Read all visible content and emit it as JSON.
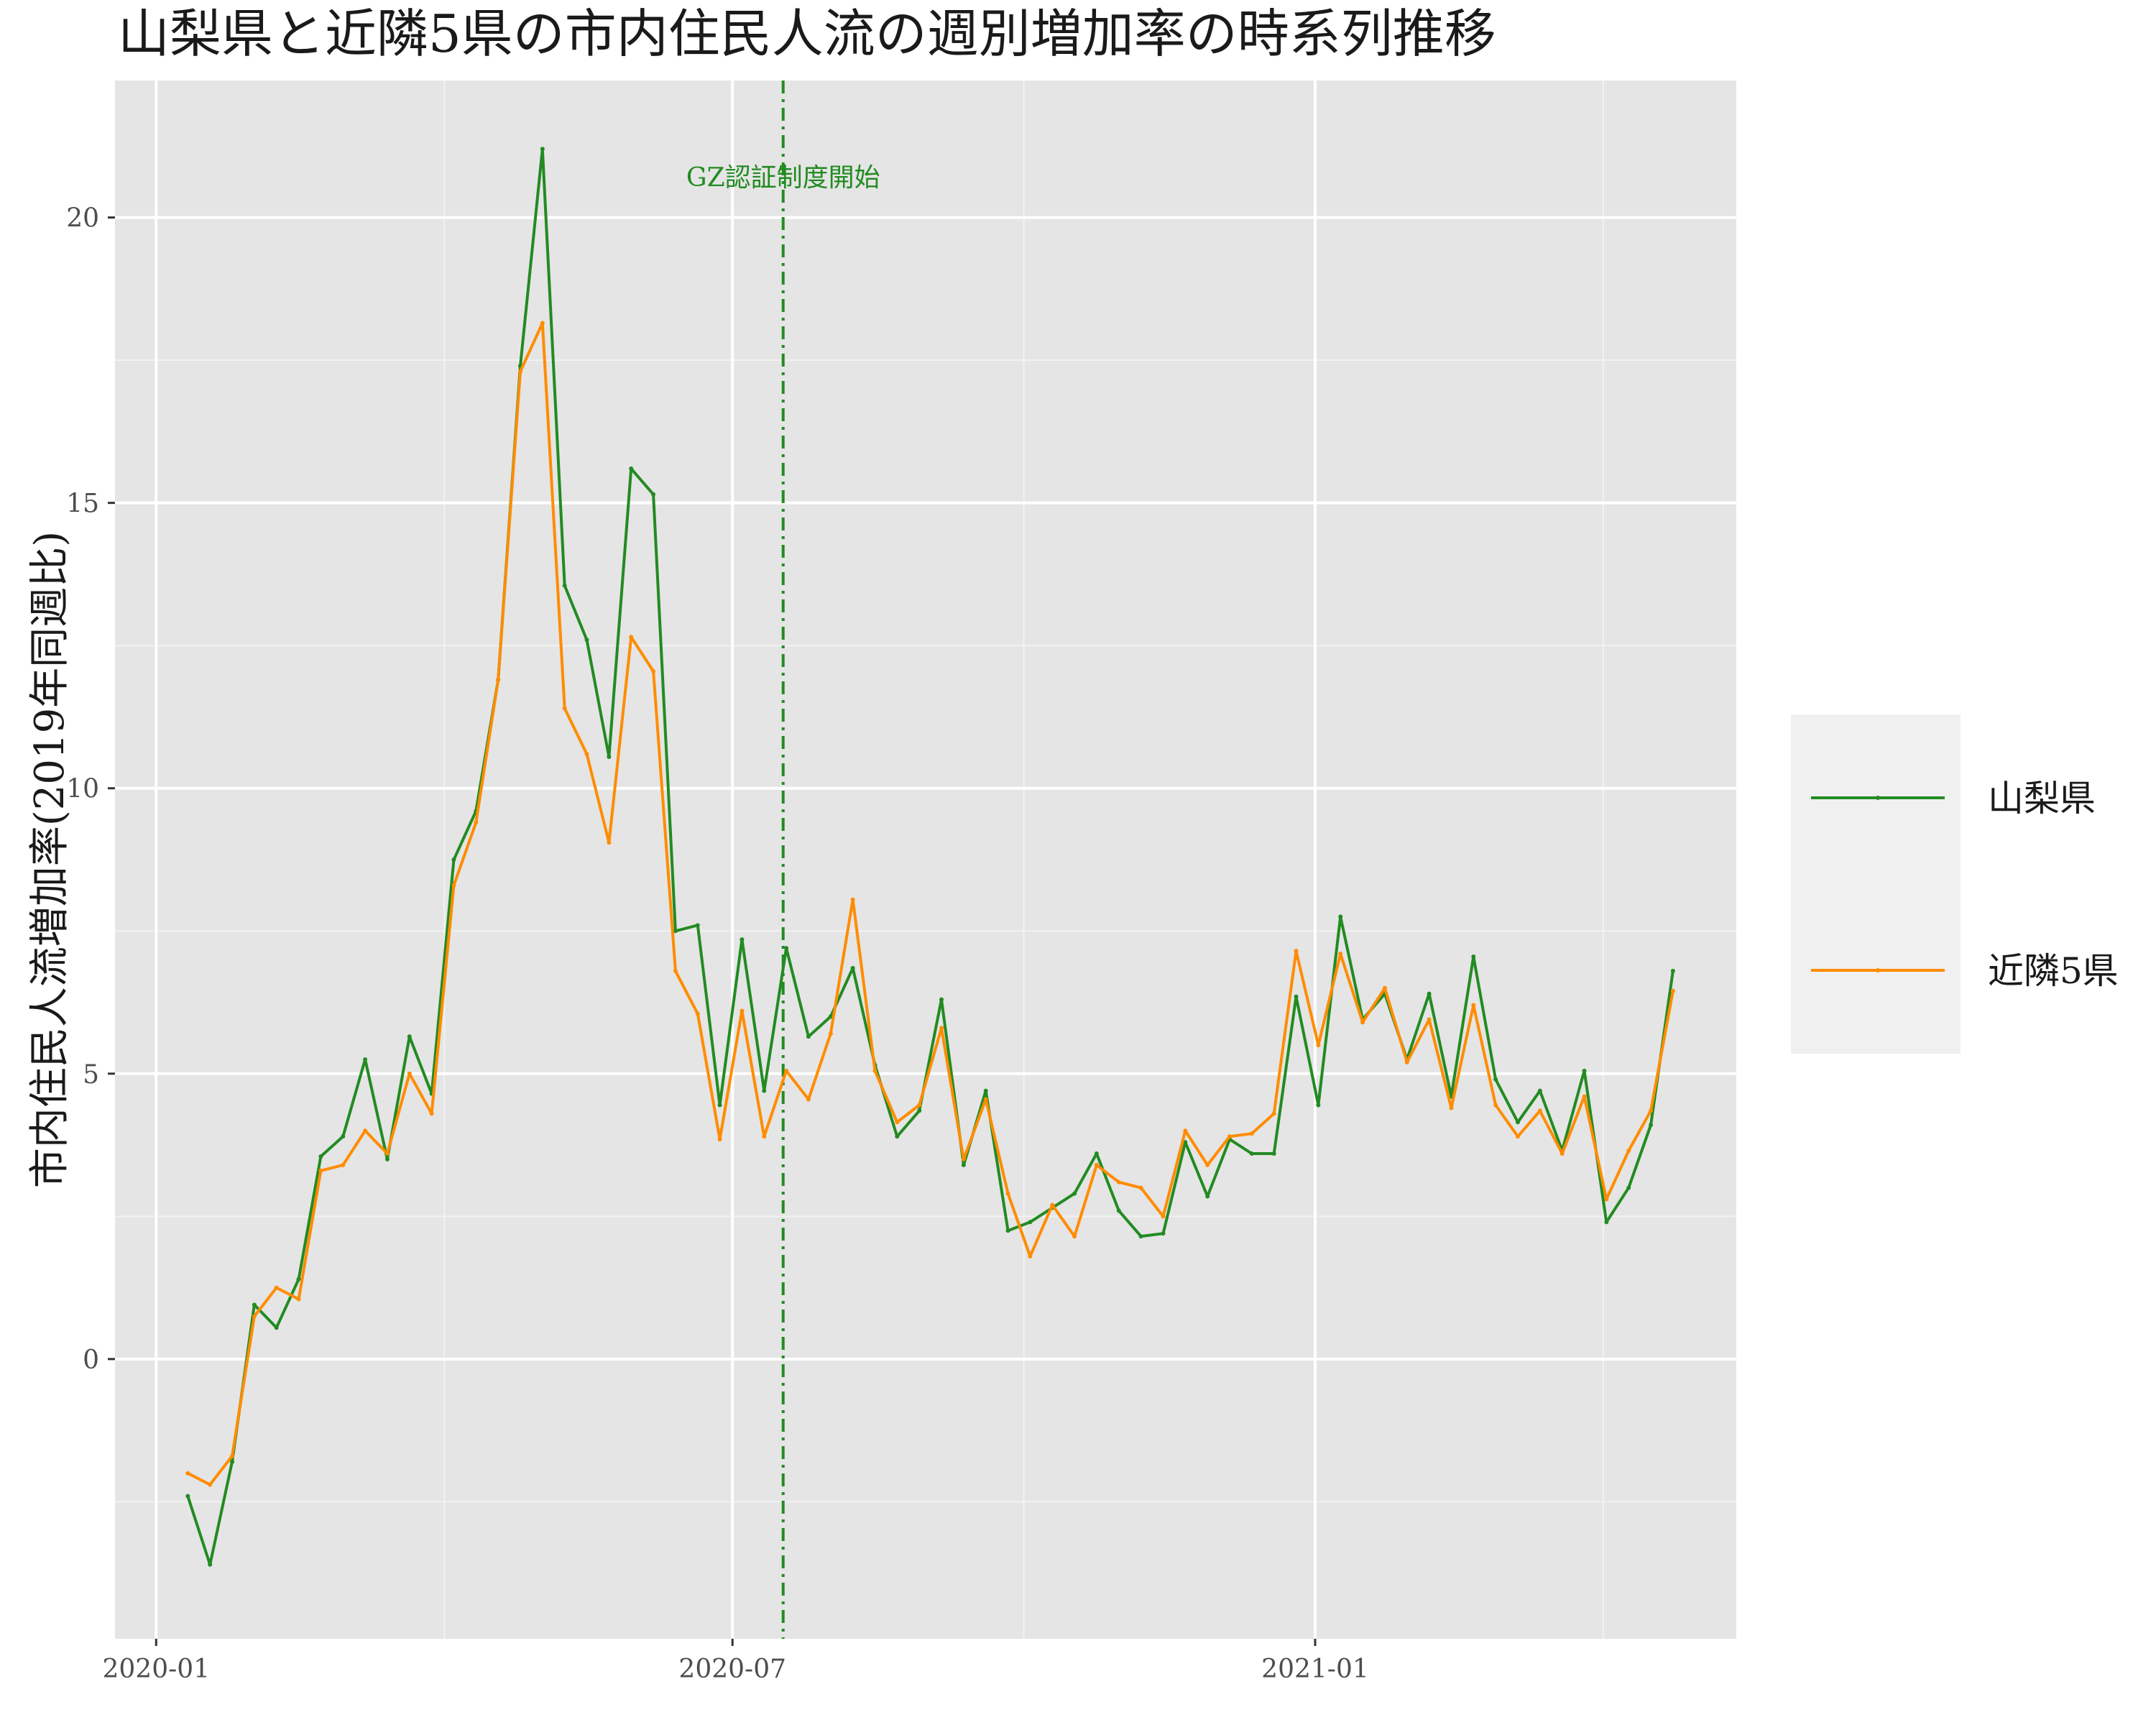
{
  "chart_data": {
    "type": "line",
    "title": "山梨県と近隣5県の市内住民人流の週別増加率の時系列推移",
    "xlabel": "",
    "ylabel": "市内住民人流増加率(2019年同週比)",
    "x_tick_labels": [
      "2020-01",
      "2020-07",
      "2021-01"
    ],
    "x_tick_dates": [
      "2020-01-01",
      "2020-07-01",
      "2021-01-01"
    ],
    "y_ticks": [
      0,
      5,
      10,
      15,
      20
    ],
    "y_tick_labels": [
      "0",
      "5",
      "10",
      "15",
      "20"
    ],
    "ylim": [
      -4.9,
      22.4
    ],
    "xlim": [
      "2019-12-19",
      "2021-05-14"
    ],
    "grid": true,
    "legend_position": "right",
    "annotation": {
      "label": "GZ認証制度開始",
      "date": "2020-07-17",
      "color": "#228b22",
      "style": "dot-dash"
    },
    "x": [
      "2020-01-11",
      "2020-01-18",
      "2020-01-25",
      "2020-02-01",
      "2020-02-08",
      "2020-02-15",
      "2020-02-22",
      "2020-02-29",
      "2020-03-07",
      "2020-03-14",
      "2020-03-21",
      "2020-03-28",
      "2020-04-04",
      "2020-04-11",
      "2020-04-18",
      "2020-04-25",
      "2020-05-02",
      "2020-05-09",
      "2020-05-16",
      "2020-05-23",
      "2020-05-30",
      "2020-06-06",
      "2020-06-13",
      "2020-06-20",
      "2020-06-27",
      "2020-07-04",
      "2020-07-11",
      "2020-07-18",
      "2020-07-25",
      "2020-08-01",
      "2020-08-08",
      "2020-08-15",
      "2020-08-22",
      "2020-08-29",
      "2020-09-05",
      "2020-09-12",
      "2020-09-19",
      "2020-09-26",
      "2020-10-03",
      "2020-10-10",
      "2020-10-17",
      "2020-10-24",
      "2020-10-31",
      "2020-11-07",
      "2020-11-14",
      "2020-11-21",
      "2020-11-28",
      "2020-12-05",
      "2020-12-12",
      "2020-12-19",
      "2020-12-26",
      "2021-01-02",
      "2021-01-09",
      "2021-01-16",
      "2021-01-23",
      "2021-01-30",
      "2021-02-06",
      "2021-02-13",
      "2021-02-20",
      "2021-02-27",
      "2021-03-06",
      "2021-03-13",
      "2021-03-20",
      "2021-03-27",
      "2021-04-03",
      "2021-04-10",
      "2021-04-17",
      "2021-04-24"
    ],
    "series": [
      {
        "name": "山梨県",
        "color": "#228b22",
        "values": [
          -2.4,
          -3.6,
          -1.8,
          0.95,
          0.55,
          1.4,
          3.55,
          3.9,
          5.25,
          3.5,
          5.65,
          4.65,
          8.75,
          9.6,
          11.9,
          17.4,
          21.2,
          13.55,
          12.6,
          10.55,
          15.6,
          15.15,
          7.5,
          7.6,
          4.45,
          7.35,
          4.7,
          7.2,
          5.65,
          6.0,
          6.85,
          5.15,
          3.9,
          4.35,
          6.3,
          3.4,
          4.7,
          2.25,
          2.4,
          2.65,
          2.9,
          3.6,
          2.6,
          2.15,
          2.2,
          3.8,
          2.85,
          3.85,
          3.6,
          3.6,
          6.35,
          4.45,
          7.75,
          5.95,
          6.4,
          5.25,
          6.4,
          4.6,
          7.05,
          4.9,
          4.15,
          4.7,
          3.65,
          5.05,
          2.4,
          3.0,
          4.1,
          6.8
        ]
      },
      {
        "name": "近隣5県",
        "color": "#ff8c00",
        "values": [
          -2.0,
          -2.2,
          -1.7,
          0.75,
          1.25,
          1.05,
          3.3,
          3.4,
          4.0,
          3.6,
          5.0,
          4.3,
          8.3,
          9.4,
          11.9,
          17.3,
          18.15,
          11.4,
          10.6,
          9.05,
          12.65,
          12.05,
          6.8,
          6.05,
          3.85,
          6.1,
          3.9,
          5.05,
          4.55,
          5.7,
          8.05,
          5.05,
          4.15,
          4.45,
          5.8,
          3.5,
          4.55,
          2.9,
          1.8,
          2.7,
          2.15,
          3.4,
          3.1,
          3.0,
          2.5,
          4.0,
          3.4,
          3.9,
          3.95,
          4.3,
          7.15,
          5.5,
          7.1,
          5.9,
          6.5,
          5.2,
          5.95,
          4.4,
          6.2,
          4.45,
          3.9,
          4.35,
          3.6,
          4.6,
          2.8,
          3.65,
          4.35,
          6.45
        ]
      }
    ]
  }
}
